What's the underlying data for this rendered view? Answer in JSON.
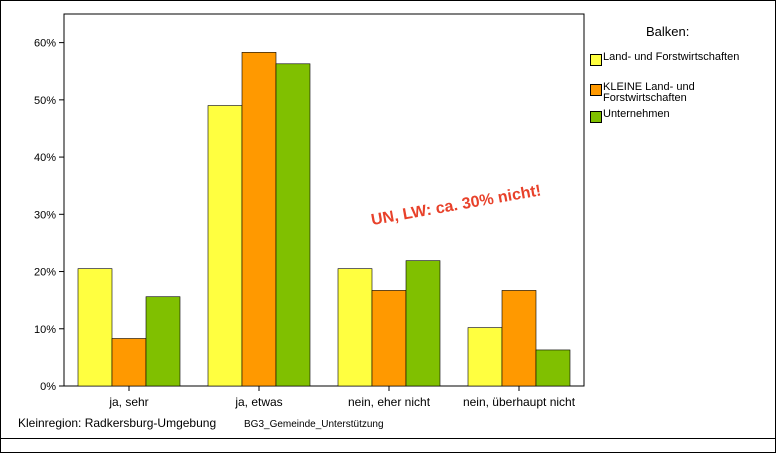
{
  "chart_data": {
    "type": "bar",
    "categories": [
      "ja, sehr",
      "ja, etwas",
      "nein, eher nicht",
      "nein, überhaupt nicht"
    ],
    "series": [
      {
        "name": "Land- und Forstwirtschaften",
        "values": [
          20.5,
          49,
          20.5,
          10.2
        ],
        "color": "#ffff40"
      },
      {
        "name": "KLEINE Land- und Forstwirtschaften",
        "values": [
          8.3,
          58.3,
          16.7,
          16.7
        ],
        "color": "#ff9900"
      },
      {
        "name": "Unternehmen",
        "values": [
          15.6,
          56.3,
          21.9,
          6.3
        ],
        "color": "#80c000"
      }
    ],
    "y_ticks": [
      "0%",
      "10%",
      "20%",
      "30%",
      "40%",
      "50%",
      "60%"
    ],
    "ylim": [
      0,
      65
    ],
    "legend_title": "Balken:",
    "annotation": "UN, LW: ca. 30% nicht!",
    "grid": false
  },
  "footer": {
    "region_label": "Kleinregion: Radkersburg-Umgebung",
    "variable": "BG3_Gemeinde_Unterstützung"
  },
  "legend": {
    "title": "Balken:",
    "items": [
      {
        "label": "Land- und Forstwirtschaften"
      },
      {
        "label": "KLEINE Land- und Forstwirtschaften"
      },
      {
        "label": "Unternehmen"
      }
    ]
  }
}
